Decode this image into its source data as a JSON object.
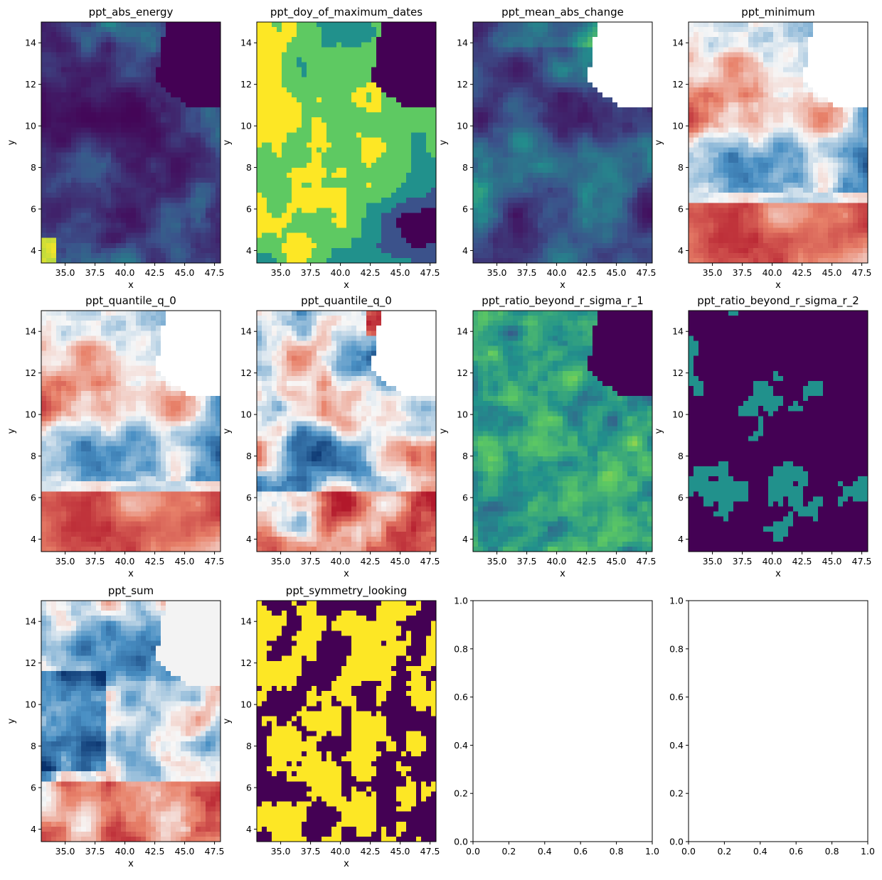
{
  "figure": {
    "layout": "3x4 grid of subplots"
  },
  "chart_data": [
    {
      "type": "heatmap",
      "title": "ppt_abs_energy",
      "xlabel": "x",
      "ylabel": "y",
      "xlim": [
        33.0,
        48.0
      ],
      "ylim": [
        3.4,
        15.0
      ],
      "xticks": [
        "35.0",
        "37.5",
        "40.0",
        "42.5",
        "45.0",
        "47.5"
      ],
      "yticks": [
        "4",
        "6",
        "8",
        "10",
        "12",
        "14"
      ],
      "colormap": "viridis",
      "nodata_region": "top-right (Gulf of Aden) shown as dark purple",
      "colors": [
        "#440154",
        "#3b528b",
        "#21918c",
        "#5ec962",
        "#fde725"
      ]
    },
    {
      "type": "heatmap",
      "title": "ppt_doy_of_maximum_dates",
      "xlabel": "x",
      "ylabel": "y",
      "xlim": [
        33.0,
        48.0
      ],
      "ylim": [
        3.4,
        15.0
      ],
      "xticks": [
        "35.0",
        "37.5",
        "40.0",
        "42.5",
        "45.0",
        "47.5"
      ],
      "yticks": [
        "4",
        "6",
        "8",
        "10",
        "12",
        "14"
      ],
      "colormap": "viridis",
      "colors": [
        "#440154",
        "#3b528b",
        "#21918c",
        "#5ec962",
        "#fde725"
      ]
    },
    {
      "type": "heatmap",
      "title": "ppt_mean_abs_change",
      "xlabel": "x",
      "ylabel": "y",
      "xlim": [
        33.0,
        48.0
      ],
      "ylim": [
        3.4,
        15.0
      ],
      "xticks": [
        "35.0",
        "37.5",
        "40.0",
        "42.5",
        "45.0",
        "47.5"
      ],
      "yticks": [
        "4",
        "6",
        "8",
        "10",
        "12",
        "14"
      ],
      "colormap": "viridis",
      "nodata_region": "top-right shown white",
      "colors": [
        "#440154",
        "#3b528b",
        "#21918c",
        "#5ec962",
        "#fde725"
      ]
    },
    {
      "type": "heatmap",
      "title": "ppt_minimum",
      "xlabel": "x",
      "ylabel": "y",
      "xlim": [
        33.0,
        48.0
      ],
      "ylim": [
        3.4,
        15.0
      ],
      "xticks": [
        "35.0",
        "37.5",
        "40.0",
        "42.5",
        "45.0",
        "47.5"
      ],
      "yticks": [
        "4",
        "6",
        "8",
        "10",
        "12",
        "14"
      ],
      "colormap": "RdBu_r",
      "nodata_region": "top-right shown white",
      "colors": [
        "#08306b",
        "#4a90c4",
        "#f7f7f7",
        "#e8826a",
        "#b2182b"
      ]
    },
    {
      "type": "heatmap",
      "title": "ppt_quantile_q_0",
      "xlabel": "x",
      "ylabel": "y",
      "xlim": [
        33.0,
        48.0
      ],
      "ylim": [
        3.4,
        15.0
      ],
      "xticks": [
        "35.0",
        "37.5",
        "40.0",
        "42.5",
        "45.0",
        "47.5"
      ],
      "yticks": [
        "4",
        "6",
        "8",
        "10",
        "12",
        "14"
      ],
      "colormap": "RdBu_r",
      "nodata_region": "top-right shown white",
      "colors": [
        "#08306b",
        "#4a90c4",
        "#f7f7f7",
        "#e8826a",
        "#b2182b"
      ]
    },
    {
      "type": "heatmap",
      "title": "ppt_quantile_q_0",
      "xlabel": "x",
      "ylabel": "y",
      "xlim": [
        33.0,
        48.0
      ],
      "ylim": [
        3.4,
        15.0
      ],
      "xticks": [
        "35.0",
        "37.5",
        "40.0",
        "42.5",
        "45.0",
        "47.5"
      ],
      "yticks": [
        "4",
        "6",
        "8",
        "10",
        "12",
        "14"
      ],
      "colormap": "RdBu_r",
      "nodata_region": "top-right shown white",
      "colors": [
        "#08306b",
        "#4a90c4",
        "#f7f7f7",
        "#e8826a",
        "#b2182b"
      ]
    },
    {
      "type": "heatmap",
      "title": "ppt_ratio_beyond_r_sigma_r_1",
      "xlabel": "x",
      "ylabel": "y",
      "xlim": [
        33.0,
        48.0
      ],
      "ylim": [
        3.4,
        15.0
      ],
      "xticks": [
        "35.0",
        "37.5",
        "40.0",
        "42.5",
        "45.0",
        "47.5"
      ],
      "yticks": [
        "4",
        "6",
        "8",
        "10",
        "12",
        "14"
      ],
      "colormap": "viridis",
      "colors": [
        "#440154",
        "#3b528b",
        "#21918c",
        "#5ec962",
        "#fde725"
      ]
    },
    {
      "type": "heatmap",
      "title": "ppt_ratio_beyond_r_sigma_r_2",
      "xlabel": "x",
      "ylabel": "y",
      "xlim": [
        33.0,
        48.0
      ],
      "ylim": [
        3.4,
        15.0
      ],
      "xticks": [
        "35.0",
        "37.5",
        "40.0",
        "42.5",
        "45.0",
        "47.5"
      ],
      "yticks": [
        "4",
        "6",
        "8",
        "10",
        "12",
        "14"
      ],
      "colormap": "viridis",
      "classes": 3,
      "colors": [
        "#440154",
        "#21918c",
        "#fde725"
      ]
    },
    {
      "type": "heatmap",
      "title": "ppt_sum",
      "xlabel": "x",
      "ylabel": "y",
      "xlim": [
        33.0,
        48.0
      ],
      "ylim": [
        3.4,
        15.0
      ],
      "xticks": [
        "35.0",
        "37.5",
        "40.0",
        "42.5",
        "45.0",
        "47.5"
      ],
      "yticks": [
        "4",
        "6",
        "8",
        "10",
        "12",
        "14"
      ],
      "colormap": "RdBu_r",
      "colors": [
        "#08306b",
        "#4a90c4",
        "#f7f7f7",
        "#e8826a",
        "#b2182b"
      ]
    },
    {
      "type": "heatmap",
      "title": "ppt_symmetry_looking",
      "xlabel": "x",
      "ylabel": "y",
      "xlim": [
        33.0,
        48.0
      ],
      "ylim": [
        3.4,
        15.0
      ],
      "xticks": [
        "35.0",
        "37.5",
        "40.0",
        "42.5",
        "45.0",
        "47.5"
      ],
      "yticks": [
        "4",
        "6",
        "8",
        "10",
        "12",
        "14"
      ],
      "colormap": "viridis",
      "classes": 2,
      "colors": [
        "#440154",
        "#fde725"
      ]
    },
    {
      "type": "empty",
      "title": "",
      "xlim": [
        0.0,
        1.0
      ],
      "ylim": [
        0.0,
        1.0
      ],
      "xticks": [
        "0.0",
        "0.2",
        "0.4",
        "0.6",
        "0.8",
        "1.0"
      ],
      "yticks": [
        "0.0",
        "0.2",
        "0.4",
        "0.6",
        "0.8",
        "1.0"
      ]
    },
    {
      "type": "empty",
      "title": "",
      "xlim": [
        0.0,
        1.0
      ],
      "ylim": [
        0.0,
        1.0
      ],
      "xticks": [
        "0.0",
        "0.2",
        "0.4",
        "0.6",
        "0.8",
        "1.0"
      ],
      "yticks": [
        "0.0",
        "0.2",
        "0.4",
        "0.6",
        "0.8",
        "1.0"
      ]
    }
  ]
}
